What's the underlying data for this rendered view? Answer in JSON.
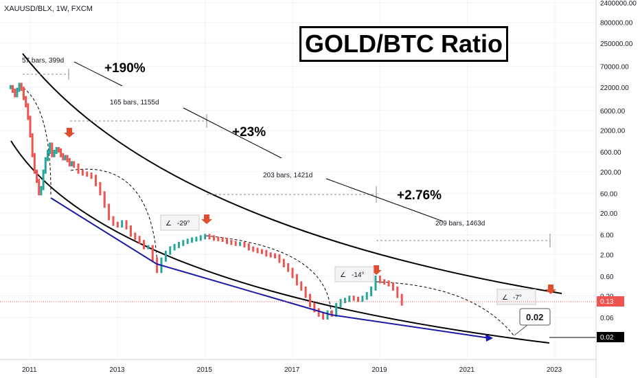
{
  "header": {
    "symbol": "XAUUSD/BLX, 1W, FXCM"
  },
  "title": "GOLD/BTC Ratio",
  "colors": {
    "up": "#26a69a",
    "down": "#ef5350",
    "support": "#1a1aa6",
    "price_label": "#ef5350",
    "grid": "#e0e3eb"
  },
  "chart_data": {
    "type": "line",
    "title": "GOLD/BTC Ratio",
    "y_scale": "log",
    "ylim": [
      0.015,
      3000000
    ],
    "xlim": [
      2010.45,
      2023.9
    ],
    "series": [
      {
        "x": [
          2010.55,
          2010.6,
          2010.65,
          2010.7,
          2010.75,
          2010.8,
          2010.85,
          2010.9,
          2010.95,
          2011.0,
          2011.05,
          2011.1,
          2011.15,
          2011.2,
          2011.25,
          2011.3,
          2011.35,
          2011.4,
          2011.45,
          2011.5,
          2011.55,
          2011.6,
          2011.65,
          2011.7,
          2011.75,
          2011.8,
          2011.85,
          2011.9,
          2011.95,
          2012.0,
          2012.1,
          2012.2,
          2012.3,
          2012.4,
          2012.5,
          2012.6,
          2012.7,
          2012.8,
          2012.9,
          2013.0,
          2013.1,
          2013.2,
          2013.3,
          2013.4,
          2013.5,
          2013.6,
          2013.7,
          2013.8,
          2013.9,
          2014.0,
          2014.1,
          2014.2,
          2014.3,
          2014.4,
          2014.5,
          2014.6,
          2014.7,
          2014.8,
          2014.9,
          2015.0,
          2015.1,
          2015.2,
          2015.3,
          2015.4,
          2015.5,
          2015.6,
          2015.7,
          2015.8,
          2015.9,
          2016.0,
          2016.1,
          2016.2,
          2016.3,
          2016.4,
          2016.5,
          2016.6,
          2016.7,
          2016.8,
          2016.9,
          2017.0,
          2017.1,
          2017.2,
          2017.3,
          2017.4,
          2017.5,
          2017.6,
          2017.7,
          2017.8,
          2017.9,
          2018.0,
          2018.1,
          2018.2,
          2018.3,
          2018.4,
          2018.5,
          2018.6,
          2018.7,
          2018.8,
          2018.9,
          2019.0,
          2019.1,
          2019.2,
          2019.3,
          2019.4,
          2019.5
        ],
        "values": [
          22000,
          18000,
          14000,
          19000,
          25000,
          20000,
          12000,
          8000,
          4000,
          1500,
          500,
          200,
          120,
          60,
          80,
          200,
          400,
          600,
          900,
          500,
          600,
          700,
          650,
          500,
          420,
          450,
          380,
          300,
          320,
          280,
          200,
          180,
          170,
          150,
          100,
          60,
          30,
          15,
          11,
          10,
          12,
          9,
          6,
          5,
          4,
          3,
          3,
          1.5,
          0.8,
          1.5,
          2.2,
          2.8,
          3.2,
          3.6,
          4,
          4.3,
          4.6,
          4.8,
          5.2,
          5.6,
          5.2,
          4.8,
          4.7,
          4.5,
          4,
          3.8,
          3.6,
          3.6,
          3.3,
          2.8,
          2.6,
          2.4,
          2.3,
          2,
          1.9,
          1.8,
          1.4,
          1.1,
          0.85,
          0.6,
          0.4,
          0.3,
          0.2,
          0.12,
          0.09,
          0.07,
          0.06,
          0.08,
          0.07,
          0.12,
          0.15,
          0.16,
          0.18,
          0.17,
          0.16,
          0.18,
          0.22,
          0.3,
          0.55,
          0.45,
          0.42,
          0.38,
          0.3,
          0.2,
          0.13
        ]
      }
    ]
  },
  "price_scale": {
    "ticks": [
      "2400000.00",
      "800000.00",
      "250000.00",
      "70000.00",
      "22000.00",
      "6000.00",
      "2000.00",
      "600.00",
      "200.00",
      "60.00",
      "20.00",
      "6.00",
      "2.00",
      "0.60",
      "0.20",
      "0.06"
    ]
  },
  "time_scale": {
    "ticks": [
      "2011",
      "2013",
      "2015",
      "2017",
      "2019",
      "2021",
      "2023"
    ]
  },
  "annotations": {
    "m1": "57 bars, 399d",
    "m2": "165 bars, 1155d",
    "m3": "203 bars, 1421d",
    "m4": "209 bars, 1463d",
    "pct1": "+190%",
    "pct2": "+23%",
    "pct3": "+2.76%",
    "angle1": "-29°",
    "angle2": "-14°",
    "angle3": "-7°",
    "target": "0.02",
    "last_price": "0.13",
    "target_price": "0.02"
  }
}
